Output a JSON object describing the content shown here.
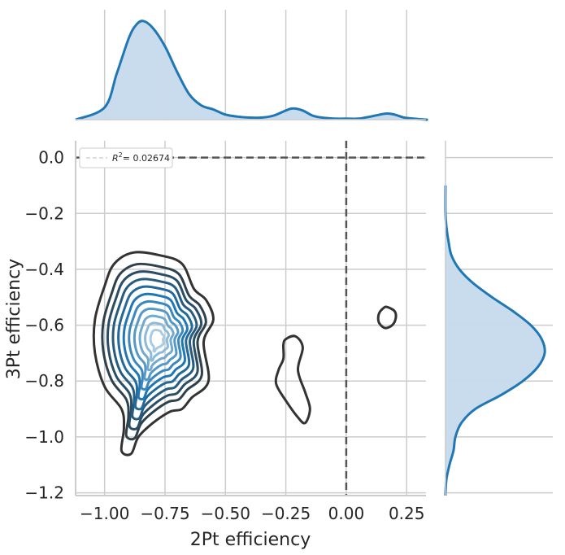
{
  "chart_data": {
    "type": "kde-jointplot",
    "xlabel": "2Pt efficiency",
    "ylabel": "3Pt efficiency",
    "xlim": [
      -1.12,
      0.33
    ],
    "ylim": [
      -1.21,
      0.06
    ],
    "xticks": [
      -1.0,
      -0.75,
      -0.5,
      -0.25,
      0.0,
      0.25
    ],
    "xtick_labels": [
      "−1.00",
      "−0.75",
      "−0.50",
      "−0.25",
      "0.00",
      "0.25"
    ],
    "yticks": [
      0.0,
      -0.2,
      -0.4,
      -0.6,
      -0.8,
      -1.0,
      -1.2
    ],
    "ytick_labels": [
      "0.0",
      "−0.2",
      "−0.4",
      "−0.6",
      "−0.8",
      "−1.0",
      "−1.2"
    ],
    "reference_lines": {
      "x": 0.0,
      "y": 0.0,
      "style": "dashed",
      "color": "#555555"
    },
    "legend": {
      "label_prefix": "R",
      "label_sup": "2",
      "label_value": "= 0.02674",
      "position": "top-left"
    },
    "grid": true,
    "colors": {
      "kde_line": "#1f77b4",
      "kde_fill": "#c6daec",
      "contour_dark": "#333333",
      "contour_light": "#a8cce2",
      "grid": "#cccccc"
    },
    "joint_kde": {
      "main_cluster_center": [
        -0.78,
        -0.65
      ],
      "levels": 11,
      "outer_contour": [
        [
          -0.88,
          -0.34
        ],
        [
          -0.77,
          -0.35
        ],
        [
          -0.68,
          -0.38
        ],
        [
          -0.63,
          -0.47
        ],
        [
          -0.58,
          -0.51
        ],
        [
          -0.55,
          -0.58
        ],
        [
          -0.59,
          -0.66
        ],
        [
          -0.57,
          -0.8
        ],
        [
          -0.64,
          -0.86
        ],
        [
          -0.68,
          -0.9
        ],
        [
          -0.73,
          -0.91
        ],
        [
          -0.8,
          -0.95
        ],
        [
          -0.86,
          -1.0
        ],
        [
          -0.89,
          -1.06
        ],
        [
          -0.93,
          -1.05
        ],
        [
          -0.92,
          -0.97
        ],
        [
          -0.93,
          -0.9
        ],
        [
          -1.0,
          -0.82
        ],
        [
          -1.04,
          -0.7
        ],
        [
          -1.04,
          -0.58
        ],
        [
          -1.0,
          -0.46
        ],
        [
          -0.96,
          -0.38
        ]
      ],
      "secondary_contours": [
        [
          [
            -0.26,
            -0.67
          ],
          [
            -0.25,
            -0.65
          ],
          [
            -0.21,
            -0.64
          ],
          [
            -0.18,
            -0.68
          ],
          [
            -0.2,
            -0.76
          ],
          [
            -0.17,
            -0.84
          ],
          [
            -0.15,
            -0.9
          ],
          [
            -0.17,
            -0.95
          ],
          [
            -0.2,
            -0.93
          ],
          [
            -0.25,
            -0.87
          ],
          [
            -0.29,
            -0.81
          ],
          [
            -0.28,
            -0.76
          ],
          [
            -0.26,
            -0.72
          ]
        ],
        [
          [
            0.17,
            -0.535
          ],
          [
            0.2,
            -0.55
          ],
          [
            0.205,
            -0.575
          ],
          [
            0.19,
            -0.6
          ],
          [
            0.16,
            -0.61
          ],
          [
            0.135,
            -0.59
          ],
          [
            0.135,
            -0.56
          ],
          [
            0.155,
            -0.538
          ]
        ]
      ]
    },
    "marginal_x": {
      "x": [
        -1.0,
        -0.95,
        -0.9,
        -0.87,
        -0.84,
        -0.8,
        -0.75,
        -0.7,
        -0.65,
        -0.6,
        -0.55,
        -0.5,
        -0.45,
        -0.4,
        -0.35,
        -0.3,
        -0.25,
        -0.22,
        -0.18,
        -0.14,
        -0.1,
        -0.05,
        0.0,
        0.05,
        0.1,
        0.14,
        0.17,
        0.2,
        0.24,
        0.28,
        0.33
      ],
      "density": [
        0.12,
        0.45,
        0.8,
        0.93,
        0.97,
        0.9,
        0.72,
        0.47,
        0.25,
        0.14,
        0.1,
        0.05,
        0.03,
        0.02,
        0.02,
        0.04,
        0.09,
        0.11,
        0.09,
        0.04,
        0.02,
        0.01,
        0.01,
        0.01,
        0.03,
        0.05,
        0.06,
        0.05,
        0.02,
        0.01,
        0.0
      ]
    },
    "marginal_y": {
      "y": [
        -1.2,
        -1.15,
        -1.1,
        -1.05,
        -1.0,
        -0.95,
        -0.9,
        -0.85,
        -0.8,
        -0.75,
        -0.7,
        -0.65,
        -0.6,
        -0.55,
        -0.5,
        -0.45,
        -0.4,
        -0.35,
        -0.3,
        -0.25,
        -0.2
      ],
      "density": [
        0.0,
        0.01,
        0.04,
        0.08,
        0.1,
        0.16,
        0.3,
        0.56,
        0.78,
        0.93,
        1.0,
        0.97,
        0.86,
        0.68,
        0.47,
        0.28,
        0.14,
        0.06,
        0.03,
        0.01,
        0.0
      ]
    }
  }
}
